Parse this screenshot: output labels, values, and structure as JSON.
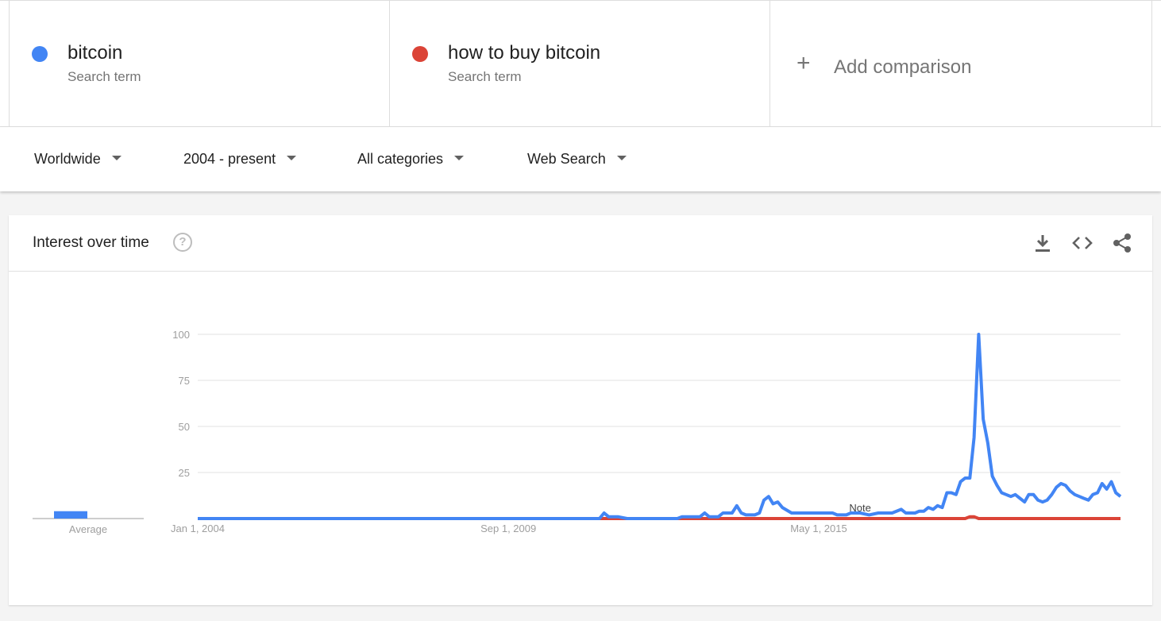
{
  "search_terms": [
    {
      "name": "bitcoin",
      "subtitle": "Search term",
      "color": "#4285f4"
    },
    {
      "name": "how to buy bitcoin",
      "subtitle": "Search term",
      "color": "#db4437"
    }
  ],
  "add_comparison": {
    "icon": "+",
    "label": "Add comparison"
  },
  "filters": {
    "region": "Worldwide",
    "time_range": "2004 - present",
    "category": "All categories",
    "search_type": "Web Search"
  },
  "card": {
    "title": "Interest over time",
    "help_icon": "?",
    "toolbar": [
      "download-icon",
      "embed-icon",
      "share-icon"
    ]
  },
  "chart_data": {
    "type": "line",
    "y_ticks": [
      "100",
      "75",
      "50",
      "25"
    ],
    "ylim": [
      0,
      100
    ],
    "x_ticks": [
      {
        "label": "Jan 1, 2004",
        "date": "2004-01-01"
      },
      {
        "label": "Sep 1, 2009",
        "date": "2009-09-01"
      },
      {
        "label": "May 1, 2015",
        "date": "2015-05-01"
      }
    ],
    "xlim": [
      "2004-01-01",
      "2020-11-01"
    ],
    "grid": true,
    "average": {
      "label": "Average",
      "values": [
        4,
        0
      ]
    },
    "note": {
      "label": "Note",
      "date": "2016-02-01"
    },
    "series": [
      {
        "color": "#4285f4",
        "points": [
          [
            "2004-01-01",
            0
          ],
          [
            "2011-05-01",
            0
          ],
          [
            "2011-06-01",
            3
          ],
          [
            "2011-07-01",
            1
          ],
          [
            "2011-09-01",
            1
          ],
          [
            "2011-11-01",
            0
          ],
          [
            "2012-10-01",
            0
          ],
          [
            "2012-11-01",
            1
          ],
          [
            "2013-01-01",
            1
          ],
          [
            "2013-03-01",
            1
          ],
          [
            "2013-04-01",
            3
          ],
          [
            "2013-05-01",
            1
          ],
          [
            "2013-07-01",
            1
          ],
          [
            "2013-08-01",
            3
          ],
          [
            "2013-09-01",
            3
          ],
          [
            "2013-10-01",
            3
          ],
          [
            "2013-11-01",
            7
          ],
          [
            "2013-12-01",
            3
          ],
          [
            "2014-01-01",
            2
          ],
          [
            "2014-03-01",
            2
          ],
          [
            "2014-04-01",
            3
          ],
          [
            "2014-05-01",
            10
          ],
          [
            "2014-06-01",
            12
          ],
          [
            "2014-07-01",
            8
          ],
          [
            "2014-08-01",
            9
          ],
          [
            "2014-09-01",
            6
          ],
          [
            "2014-11-01",
            3
          ],
          [
            "2015-01-01",
            3
          ],
          [
            "2015-05-01",
            3
          ],
          [
            "2015-08-01",
            3
          ],
          [
            "2015-09-01",
            2
          ],
          [
            "2015-11-01",
            2
          ],
          [
            "2015-12-01",
            3
          ],
          [
            "2016-02-01",
            3
          ],
          [
            "2016-04-01",
            2
          ],
          [
            "2016-06-01",
            3
          ],
          [
            "2016-09-01",
            3
          ],
          [
            "2016-11-01",
            5
          ],
          [
            "2016-12-01",
            3
          ],
          [
            "2017-02-01",
            3
          ],
          [
            "2017-03-01",
            4
          ],
          [
            "2017-04-01",
            4
          ],
          [
            "2017-05-01",
            6
          ],
          [
            "2017-06-01",
            5
          ],
          [
            "2017-07-01",
            7
          ],
          [
            "2017-08-01",
            6
          ],
          [
            "2017-09-01",
            14
          ],
          [
            "2017-10-01",
            14
          ],
          [
            "2017-11-01",
            13
          ],
          [
            "2017-12-01",
            20
          ],
          [
            "2018-01-01",
            22
          ],
          [
            "2018-02-01",
            22
          ],
          [
            "2018-03-01",
            44
          ],
          [
            "2018-04-01",
            100
          ],
          [
            "2018-05-01",
            54
          ],
          [
            "2018-06-01",
            41
          ],
          [
            "2018-07-01",
            23
          ],
          [
            "2018-08-01",
            18
          ],
          [
            "2018-09-01",
            14
          ],
          [
            "2018-10-01",
            13
          ],
          [
            "2018-11-01",
            12
          ],
          [
            "2018-12-01",
            13
          ],
          [
            "2019-01-01",
            11
          ],
          [
            "2019-02-01",
            9
          ],
          [
            "2019-03-01",
            13
          ],
          [
            "2019-04-01",
            13
          ],
          [
            "2019-05-01",
            10
          ],
          [
            "2019-06-01",
            9
          ],
          [
            "2019-07-01",
            10
          ],
          [
            "2019-08-01",
            13
          ],
          [
            "2019-09-01",
            17
          ],
          [
            "2019-10-01",
            19
          ],
          [
            "2019-11-01",
            18
          ],
          [
            "2019-12-01",
            15
          ],
          [
            "2020-01-01",
            13
          ],
          [
            "2020-02-01",
            12
          ],
          [
            "2020-03-01",
            11
          ],
          [
            "2020-04-01",
            10
          ],
          [
            "2020-05-01",
            13
          ],
          [
            "2020-06-01",
            14
          ],
          [
            "2020-07-01",
            19
          ],
          [
            "2020-08-01",
            16
          ],
          [
            "2020-09-01",
            20
          ],
          [
            "2020-10-01",
            14
          ],
          [
            "2020-11-01",
            12
          ]
        ]
      },
      {
        "color": "#db4437",
        "points": [
          [
            "2004-01-01",
            0
          ],
          [
            "2018-01-01",
            0
          ],
          [
            "2018-02-01",
            1
          ],
          [
            "2018-03-01",
            1
          ],
          [
            "2018-04-01",
            0
          ],
          [
            "2020-11-01",
            0
          ]
        ]
      }
    ]
  }
}
